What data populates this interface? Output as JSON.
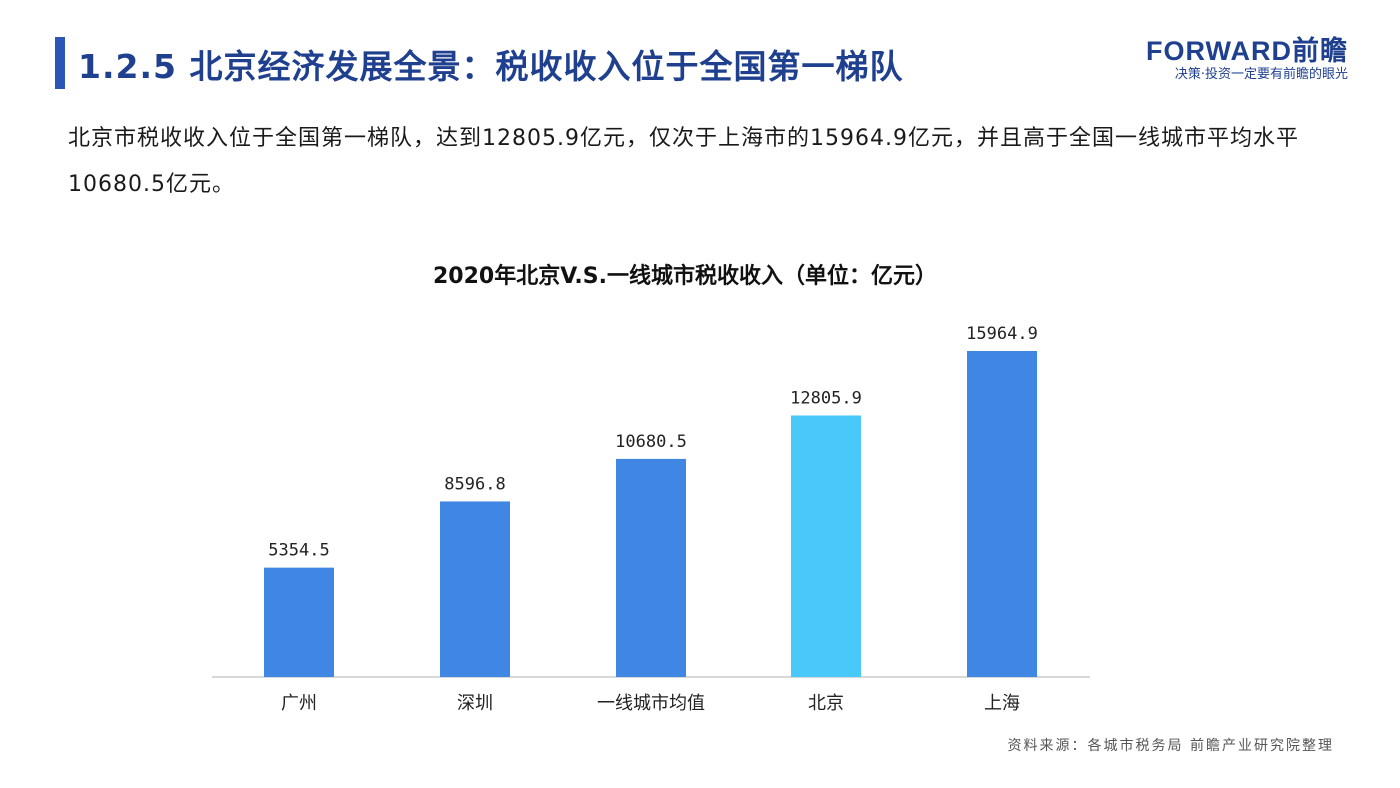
{
  "header": {
    "title": "1.2.5 北京经济发展全景：税收收入位于全国第一梯队",
    "logo_main": "FORWARD前瞻",
    "logo_sub": "决策·投资一定要有前瞻的眼光"
  },
  "intro": "北京市税收收入位于全国第一梯队，达到12805.9亿元，仅次于上海市的15964.9亿元，并且高于全国一线城市平均水平10680.5亿元。",
  "source": "资料来源：各城市税务局 前瞻产业研究院整理",
  "colors": {
    "bar": "#3f87e3",
    "highlight": "#48c9f9",
    "title": "#1f3f8f",
    "axis": "#cccccc"
  },
  "chart_data": {
    "type": "bar",
    "title": "2020年北京V.S.一线城市税收收入（单位：亿元）",
    "categories": [
      "广州",
      "深圳",
      "一线城市均值",
      "北京",
      "上海"
    ],
    "values": [
      5354.5,
      8596.8,
      10680.5,
      12805.9,
      15964.9
    ],
    "value_labels": [
      "5354.5",
      "8596.8",
      "10680.5",
      "12805.9",
      "15964.9"
    ],
    "highlight": "北京",
    "ylim": [
      0,
      18000
    ],
    "xlabel": "",
    "ylabel": "",
    "grid": false,
    "legend": "none"
  }
}
